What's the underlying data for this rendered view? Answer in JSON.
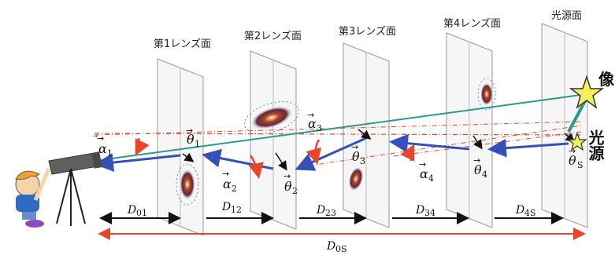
{
  "planes": [
    {
      "id": "lens1",
      "label": "第1レンズ面"
    },
    {
      "id": "lens2",
      "label": "第2レンズ面"
    },
    {
      "id": "lens3",
      "label": "第3レンズ面"
    },
    {
      "id": "lens4",
      "label": "第4レンズ面"
    },
    {
      "id": "source",
      "label": "光源面"
    }
  ],
  "source_labels": {
    "image": "像",
    "source": "光源"
  },
  "symbols": {
    "alpha1": {
      "main": "α",
      "sub": "1"
    },
    "alpha2": {
      "main": "α",
      "sub": "2"
    },
    "alpha3": {
      "main": "α",
      "sub": "3"
    },
    "alpha4": {
      "main": "α",
      "sub": "4"
    },
    "theta1": {
      "main": "θ",
      "sub": "1"
    },
    "theta2": {
      "main": "θ",
      "sub": "2"
    },
    "theta3": {
      "main": "θ",
      "sub": "3"
    },
    "theta4": {
      "main": "θ",
      "sub": "4"
    },
    "thetaS": {
      "main": "θ",
      "sub": "S"
    }
  },
  "distances": {
    "d01": {
      "main": "D",
      "sub": "01"
    },
    "d12": {
      "main": "D",
      "sub": "12"
    },
    "d23": {
      "main": "D",
      "sub": "23"
    },
    "d34": {
      "main": "D",
      "sub": "34"
    },
    "d4s": {
      "main": "D",
      "sub": "4S"
    },
    "d0s": {
      "main": "D",
      "sub": "0S"
    }
  },
  "colors": {
    "ray": "#3550b8",
    "observed": "#2a9a8e",
    "deflection": "#e8462a",
    "black": "#111111",
    "star": "#f6f05a"
  }
}
